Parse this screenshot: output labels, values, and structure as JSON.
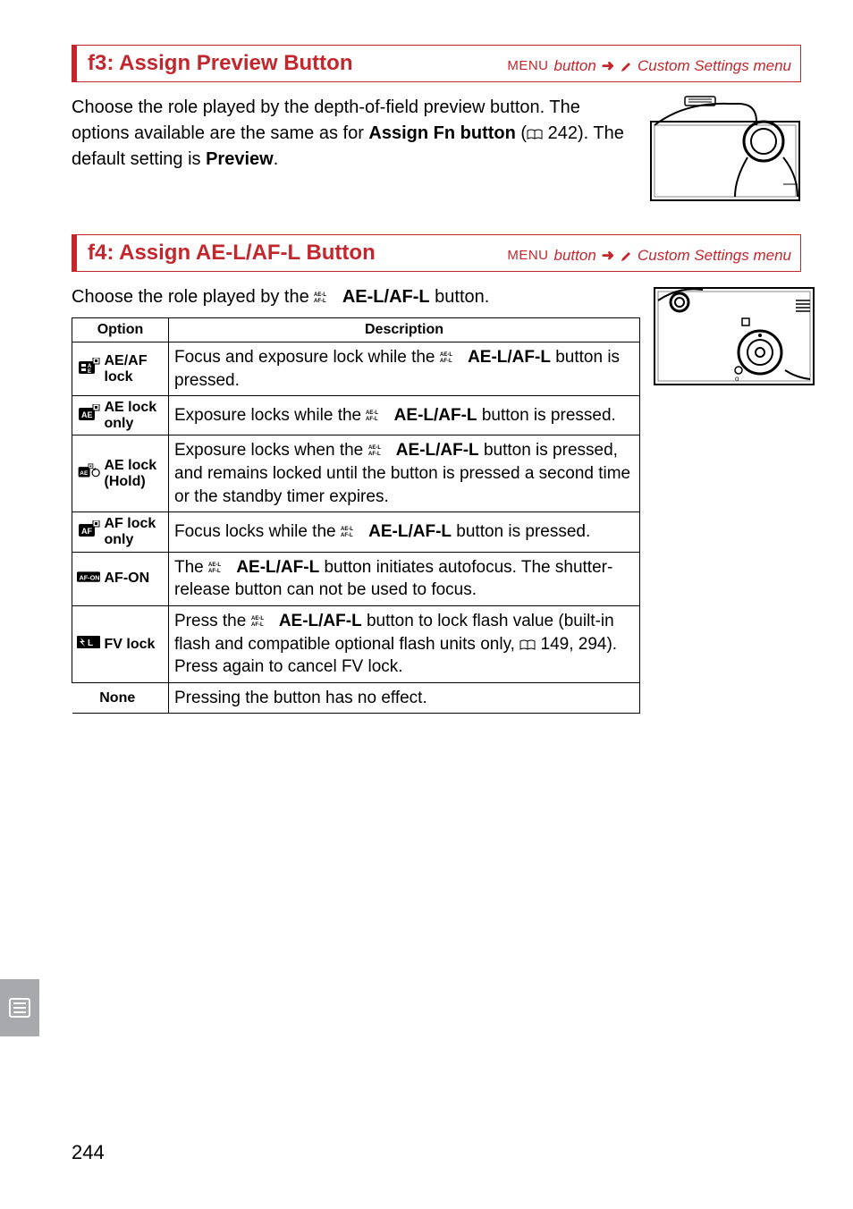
{
  "colors": {
    "accent": "#c1272d",
    "text": "#000000",
    "tab_bg": "#a7a9ac",
    "border": "#000000"
  },
  "page_number": "244",
  "section1": {
    "title": "f3: Assign Preview Button",
    "breadcrumb_menu": "MENU",
    "breadcrumb_button": "button",
    "breadcrumb_dest": "Custom Settings menu",
    "intro_pre": "Choose the role played by the depth-of-field preview button. The options available are the same as for ",
    "intro_bold": "Assign Fn button",
    "intro_mid": " (",
    "intro_ref": " 242).  The default setting is ",
    "intro_bold2": "Preview",
    "intro_end": "."
  },
  "section2": {
    "title": "f4: Assign AE-L/AF-L Button",
    "breadcrumb_menu": "MENU",
    "breadcrumb_button": "button",
    "breadcrumb_dest": "Custom Settings menu",
    "intro_pre": "Choose the role played by the ",
    "intro_bold": "AE-L/AF-L",
    "intro_post": " button.",
    "header_option": "Option",
    "header_desc": "Description",
    "rows": [
      {
        "icon": "ae-af-lock-icon",
        "label": "AE/AF lock",
        "desc_pre": "Focus and exposure lock while the ",
        "desc_bold": "AE-L/AF-L",
        "desc_post": " button is pressed."
      },
      {
        "icon": "ae-lock-only-icon",
        "label": "AE lock only",
        "desc_pre": "Exposure locks while the ",
        "desc_bold": "AE-L/AF-L",
        "desc_post": " button is pressed."
      },
      {
        "icon": "ae-lock-hold-icon",
        "label": "AE lock (Hold)",
        "desc_pre": "Exposure locks when the ",
        "desc_bold": "AE-L/AF-L",
        "desc_post": " button is pressed, and remains locked until the button is pressed a second time or the standby timer expires."
      },
      {
        "icon": "af-lock-only-icon",
        "label": "AF lock only",
        "desc_pre": "Focus locks while the ",
        "desc_bold": "AE-L/AF-L",
        "desc_post": " button is pressed."
      },
      {
        "icon": "af-on-icon",
        "label": "AF-ON",
        "desc_pre": "The ",
        "desc_bold": "AE-L/AF-L",
        "desc_post": " button initiates autofocus. The shutter-release button can not be used to focus."
      },
      {
        "icon": "fv-lock-icon",
        "label": "FV lock",
        "desc_pre": "Press the ",
        "desc_bold": "AE-L/AF-L",
        "desc_mid": " button to lock flash value (built-in flash and compatible optional flash units only, ",
        "desc_ref": " 149, 294).  Press again to cancel FV lock."
      },
      {
        "icon": "",
        "label": "None",
        "desc_plain": "Pressing the button has no effect."
      }
    ]
  }
}
